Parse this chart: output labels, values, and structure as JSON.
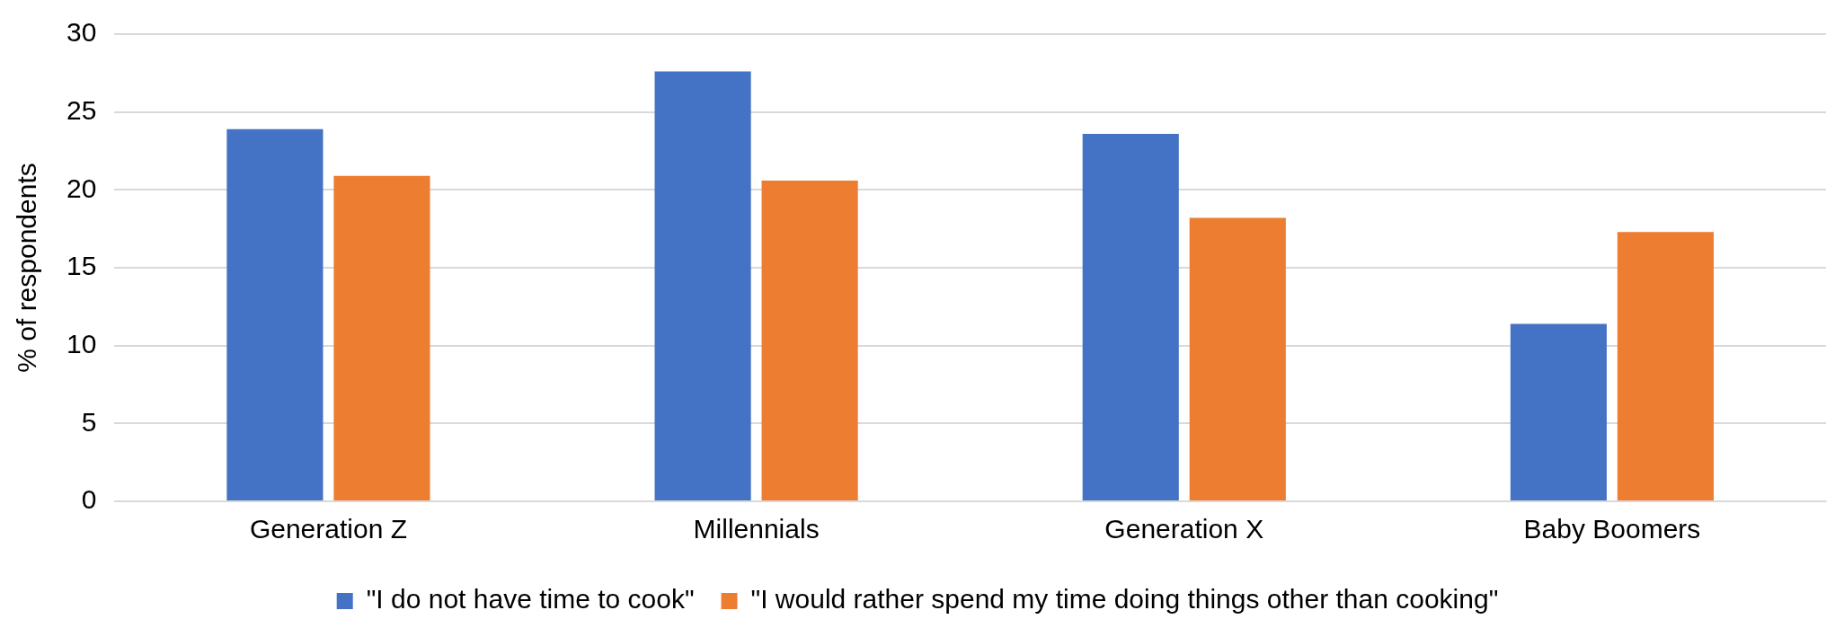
{
  "chart_data": {
    "type": "bar",
    "ylabel": "% of respondents",
    "categories": [
      "Generation Z",
      "Millennials",
      "Generation X",
      "Baby Boomers"
    ],
    "series": [
      {
        "name": "\"I do not have time to cook\"",
        "color": "#4472c4",
        "values": [
          23.9,
          27.6,
          23.6,
          11.4
        ]
      },
      {
        "name": "\"I would rather spend my time doing things other than cooking\"",
        "color": "#ed7d31",
        "values": [
          20.9,
          20.6,
          18.2,
          17.3
        ]
      }
    ],
    "ylim": [
      0,
      30
    ],
    "yticks": [
      0,
      5,
      10,
      15,
      20,
      25,
      30
    ],
    "grid": "y",
    "legend": "bottom"
  }
}
